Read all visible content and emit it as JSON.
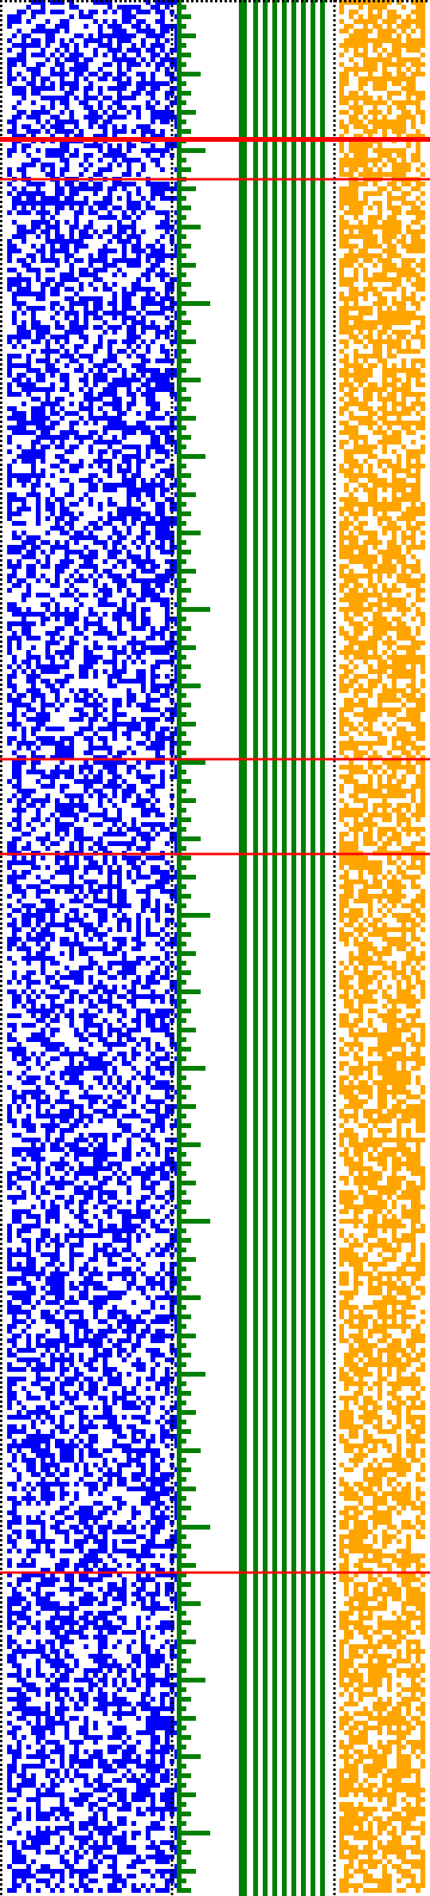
{
  "visualization": {
    "kind": "cellular-automaton-bit-pattern",
    "background_color": "#ffffff",
    "panels": [
      {
        "id": "state-bits",
        "color": "#0000ff",
        "fill_density": 0.5
      },
      {
        "id": "carry-staircase",
        "color": "#008000"
      },
      {
        "id": "counter-columns",
        "color": "#008000"
      },
      {
        "id": "output-bits",
        "color": "#ffa500",
        "fill_density": 0.62
      }
    ],
    "separator_style": "dotted",
    "separator_color": "#000000",
    "marker_color": "#ff0000",
    "marker_rows": [
      {
        "fraction": 0.0735,
        "weight": "thick"
      },
      {
        "fraction": 0.0945,
        "weight": "thin"
      },
      {
        "fraction": 0.4005,
        "weight": "thin"
      },
      {
        "fraction": 0.4505,
        "weight": "thin"
      },
      {
        "fraction": 0.8295,
        "weight": "thin"
      }
    ]
  }
}
